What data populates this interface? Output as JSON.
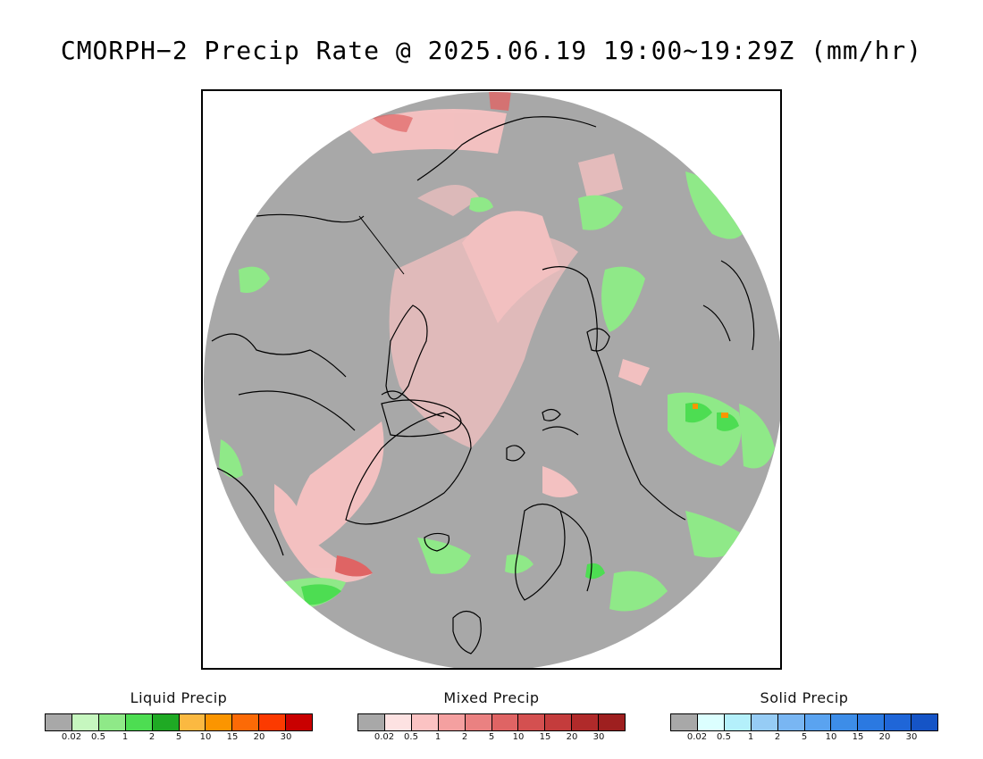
{
  "title": "CMORPH−2 Precip Rate @ 2025.06.19 19:00~19:29Z (mm/hr)",
  "map": {
    "projection": "polar stereographic (north)",
    "base_color": "#a8a8a8",
    "coastline_color": "#000000"
  },
  "legends": [
    {
      "id": "liquid",
      "title": "Liquid Precip",
      "colors": [
        "#a8a8a8",
        "#c6f7bf",
        "#8fe988",
        "#4ddd52",
        "#1faa24",
        "#fbb941",
        "#fb9500",
        "#fc6a06",
        "#fc3a00",
        "#c90000"
      ],
      "ticks": [
        "0.02",
        "0.5",
        "1",
        "2",
        "5",
        "10",
        "15",
        "20",
        "30"
      ]
    },
    {
      "id": "mixed",
      "title": "Mixed Precip",
      "colors": [
        "#a8a8a8",
        "#fde2e2",
        "#fbc3c3",
        "#f4a0a0",
        "#ea8181",
        "#df6464",
        "#d45050",
        "#c43c3c",
        "#b02a2a",
        "#9e1f1f"
      ],
      "ticks": [
        "0.02",
        "0.5",
        "1",
        "2",
        "5",
        "10",
        "15",
        "20",
        "30"
      ]
    },
    {
      "id": "solid",
      "title": "Solid Precip",
      "colors": [
        "#a8a8a8",
        "#dcffff",
        "#b4f0fb",
        "#96ccf5",
        "#79b6f3",
        "#5aa3f0",
        "#3d8de8",
        "#2b79e1",
        "#1f66d8",
        "#1554c6"
      ],
      "ticks": [
        "0.02",
        "0.5",
        "1",
        "2",
        "5",
        "10",
        "15",
        "20",
        "30"
      ]
    }
  ]
}
